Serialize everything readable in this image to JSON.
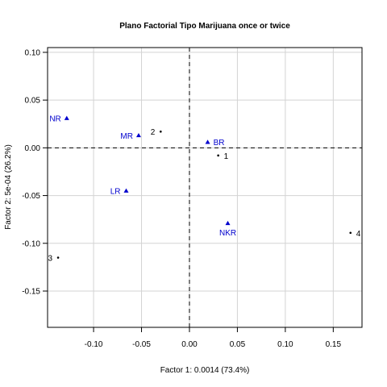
{
  "chart_data": {
    "type": "scatter",
    "title": "Plano Factorial Tipo Marijuana once or twice",
    "xlabel": "Factor 1: 0.0014 (73.4%)",
    "ylabel": "Factor 2: 5e-04 (26.2%)",
    "xlim": [
      -0.148,
      0.18
    ],
    "ylim": [
      -0.188,
      0.105
    ],
    "x_ticks": [
      -0.1,
      -0.05,
      0.0,
      0.05,
      0.1,
      0.15
    ],
    "x_tick_labels": [
      "-0.10",
      "-0.05",
      "0.00",
      "0.05",
      "0.10",
      "0.15"
    ],
    "y_ticks": [
      -0.15,
      -0.1,
      -0.05,
      0.0,
      0.05,
      0.1
    ],
    "y_tick_labels": [
      "-0.15",
      "-0.10",
      "-0.05",
      "0.00",
      "0.05",
      "0.10"
    ],
    "grid": true,
    "reference_lines": {
      "x": 0,
      "y": 0,
      "style": "dashed"
    },
    "series": [
      {
        "marker": "triangle",
        "color": "#0000cd",
        "points": [
          {
            "label": "NR",
            "x": -0.128,
            "y": 0.031,
            "label_side": "left"
          },
          {
            "label": "MR",
            "x": -0.053,
            "y": 0.013,
            "label_side": "left"
          },
          {
            "label": "BR",
            "x": 0.019,
            "y": 0.006,
            "label_side": "right"
          },
          {
            "label": "LR",
            "x": -0.066,
            "y": -0.045,
            "label_side": "left"
          },
          {
            "label": "NKR",
            "x": 0.04,
            "y": -0.079,
            "label_side": "below"
          }
        ]
      },
      {
        "marker": "dot",
        "color": "#000000",
        "points": [
          {
            "label": "2",
            "x": -0.03,
            "y": 0.017,
            "label_side": "left"
          },
          {
            "label": "1",
            "x": 0.03,
            "y": -0.008,
            "label_side": "right"
          },
          {
            "label": "3",
            "x": -0.137,
            "y": -0.115,
            "label_side": "left"
          },
          {
            "label": "4",
            "x": 0.168,
            "y": -0.089,
            "label_side": "right"
          }
        ]
      }
    ]
  }
}
